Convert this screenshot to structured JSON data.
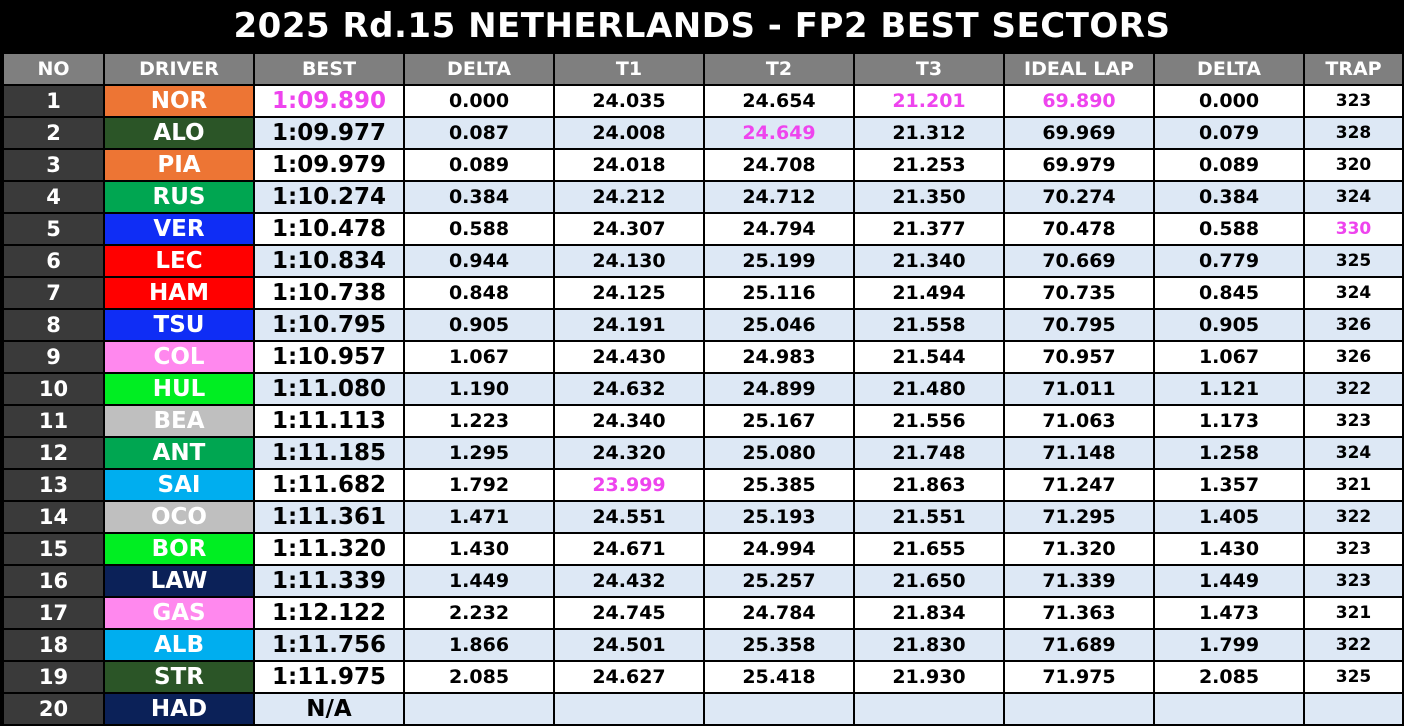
{
  "title": "2025 Rd.15 NETHERLANDS - FP2 BEST SECTORS",
  "headers": [
    "NO",
    "DRIVER",
    "BEST",
    "DELTA",
    "T1",
    "T2",
    "T3",
    "IDEAL LAP",
    "DELTA",
    "TRAP"
  ],
  "colors": {
    "purple": "#ee44ee",
    "header_bg": "#7f7f7f",
    "number_bg": "#3a3a3a",
    "row_alt": "#dde8f5"
  },
  "rows": [
    {
      "no": "1",
      "driver": "NOR",
      "color": "#ed7534",
      "best": "1:09.890",
      "delta": "0.000",
      "t1": "24.035",
      "t2": "24.654",
      "t3": "21.201",
      "ideal": "69.890",
      "idelta": "0.000",
      "trap": "323",
      "purple": [
        "best",
        "t3",
        "ideal"
      ]
    },
    {
      "no": "2",
      "driver": "ALO",
      "color": "#2b5527",
      "best": "1:09.977",
      "delta": "0.087",
      "t1": "24.008",
      "t2": "24.649",
      "t3": "21.312",
      "ideal": "69.969",
      "idelta": "0.079",
      "trap": "328",
      "purple": [
        "t2"
      ]
    },
    {
      "no": "3",
      "driver": "PIA",
      "color": "#ed7534",
      "best": "1:09.979",
      "delta": "0.089",
      "t1": "24.018",
      "t2": "24.708",
      "t3": "21.253",
      "ideal": "69.979",
      "idelta": "0.089",
      "trap": "320",
      "purple": []
    },
    {
      "no": "4",
      "driver": "RUS",
      "color": "#00a651",
      "best": "1:10.274",
      "delta": "0.384",
      "t1": "24.212",
      "t2": "24.712",
      "t3": "21.350",
      "ideal": "70.274",
      "idelta": "0.384",
      "trap": "324",
      "purple": []
    },
    {
      "no": "5",
      "driver": "VER",
      "color": "#0f2df5",
      "best": "1:10.478",
      "delta": "0.588",
      "t1": "24.307",
      "t2": "24.794",
      "t3": "21.377",
      "ideal": "70.478",
      "idelta": "0.588",
      "trap": "330",
      "purple": [
        "trap"
      ]
    },
    {
      "no": "6",
      "driver": "LEC",
      "color": "#ff0000",
      "best": "1:10.834",
      "delta": "0.944",
      "t1": "24.130",
      "t2": "25.199",
      "t3": "21.340",
      "ideal": "70.669",
      "idelta": "0.779",
      "trap": "325",
      "purple": []
    },
    {
      "no": "7",
      "driver": "HAM",
      "color": "#ff0000",
      "best": "1:10.738",
      "delta": "0.848",
      "t1": "24.125",
      "t2": "25.116",
      "t3": "21.494",
      "ideal": "70.735",
      "idelta": "0.845",
      "trap": "324",
      "purple": []
    },
    {
      "no": "8",
      "driver": "TSU",
      "color": "#0f2df5",
      "best": "1:10.795",
      "delta": "0.905",
      "t1": "24.191",
      "t2": "25.046",
      "t3": "21.558",
      "ideal": "70.795",
      "idelta": "0.905",
      "trap": "326",
      "purple": []
    },
    {
      "no": "9",
      "driver": "COL",
      "color": "#ff88ee",
      "best": "1:10.957",
      "delta": "1.067",
      "t1": "24.430",
      "t2": "24.983",
      "t3": "21.544",
      "ideal": "70.957",
      "idelta": "1.067",
      "trap": "326",
      "purple": []
    },
    {
      "no": "10",
      "driver": "HUL",
      "color": "#00ee22",
      "best": "1:11.080",
      "delta": "1.190",
      "t1": "24.632",
      "t2": "24.899",
      "t3": "21.480",
      "ideal": "71.011",
      "idelta": "1.121",
      "trap": "322",
      "purple": []
    },
    {
      "no": "11",
      "driver": "BEA",
      "color": "#bfbfbf",
      "best": "1:11.113",
      "delta": "1.223",
      "t1": "24.340",
      "t2": "25.167",
      "t3": "21.556",
      "ideal": "71.063",
      "idelta": "1.173",
      "trap": "323",
      "purple": []
    },
    {
      "no": "12",
      "driver": "ANT",
      "color": "#00a651",
      "best": "1:11.185",
      "delta": "1.295",
      "t1": "24.320",
      "t2": "25.080",
      "t3": "21.748",
      "ideal": "71.148",
      "idelta": "1.258",
      "trap": "324",
      "purple": []
    },
    {
      "no": "13",
      "driver": "SAI",
      "color": "#00aeef",
      "best": "1:11.682",
      "delta": "1.792",
      "t1": "23.999",
      "t2": "25.385",
      "t3": "21.863",
      "ideal": "71.247",
      "idelta": "1.357",
      "trap": "321",
      "purple": [
        "t1"
      ]
    },
    {
      "no": "14",
      "driver": "OCO",
      "color": "#bfbfbf",
      "best": "1:11.361",
      "delta": "1.471",
      "t1": "24.551",
      "t2": "25.193",
      "t3": "21.551",
      "ideal": "71.295",
      "idelta": "1.405",
      "trap": "322",
      "purple": []
    },
    {
      "no": "15",
      "driver": "BOR",
      "color": "#00ee22",
      "best": "1:11.320",
      "delta": "1.430",
      "t1": "24.671",
      "t2": "24.994",
      "t3": "21.655",
      "ideal": "71.320",
      "idelta": "1.430",
      "trap": "323",
      "purple": []
    },
    {
      "no": "16",
      "driver": "LAW",
      "color": "#0b2158",
      "best": "1:11.339",
      "delta": "1.449",
      "t1": "24.432",
      "t2": "25.257",
      "t3": "21.650",
      "ideal": "71.339",
      "idelta": "1.449",
      "trap": "323",
      "purple": []
    },
    {
      "no": "17",
      "driver": "GAS",
      "color": "#ff88ee",
      "best": "1:12.122",
      "delta": "2.232",
      "t1": "24.745",
      "t2": "24.784",
      "t3": "21.834",
      "ideal": "71.363",
      "idelta": "1.473",
      "trap": "321",
      "purple": []
    },
    {
      "no": "18",
      "driver": "ALB",
      "color": "#00aeef",
      "best": "1:11.756",
      "delta": "1.866",
      "t1": "24.501",
      "t2": "25.358",
      "t3": "21.830",
      "ideal": "71.689",
      "idelta": "1.799",
      "trap": "322",
      "purple": []
    },
    {
      "no": "19",
      "driver": "STR",
      "color": "#2b5527",
      "best": "1:11.975",
      "delta": "2.085",
      "t1": "24.627",
      "t2": "25.418",
      "t3": "21.930",
      "ideal": "71.975",
      "idelta": "2.085",
      "trap": "325",
      "purple": []
    },
    {
      "no": "20",
      "driver": "HAD",
      "color": "#0b2158",
      "best": "N/A",
      "delta": "",
      "t1": "",
      "t2": "",
      "t3": "",
      "ideal": "",
      "idelta": "",
      "trap": "",
      "purple": []
    }
  ]
}
